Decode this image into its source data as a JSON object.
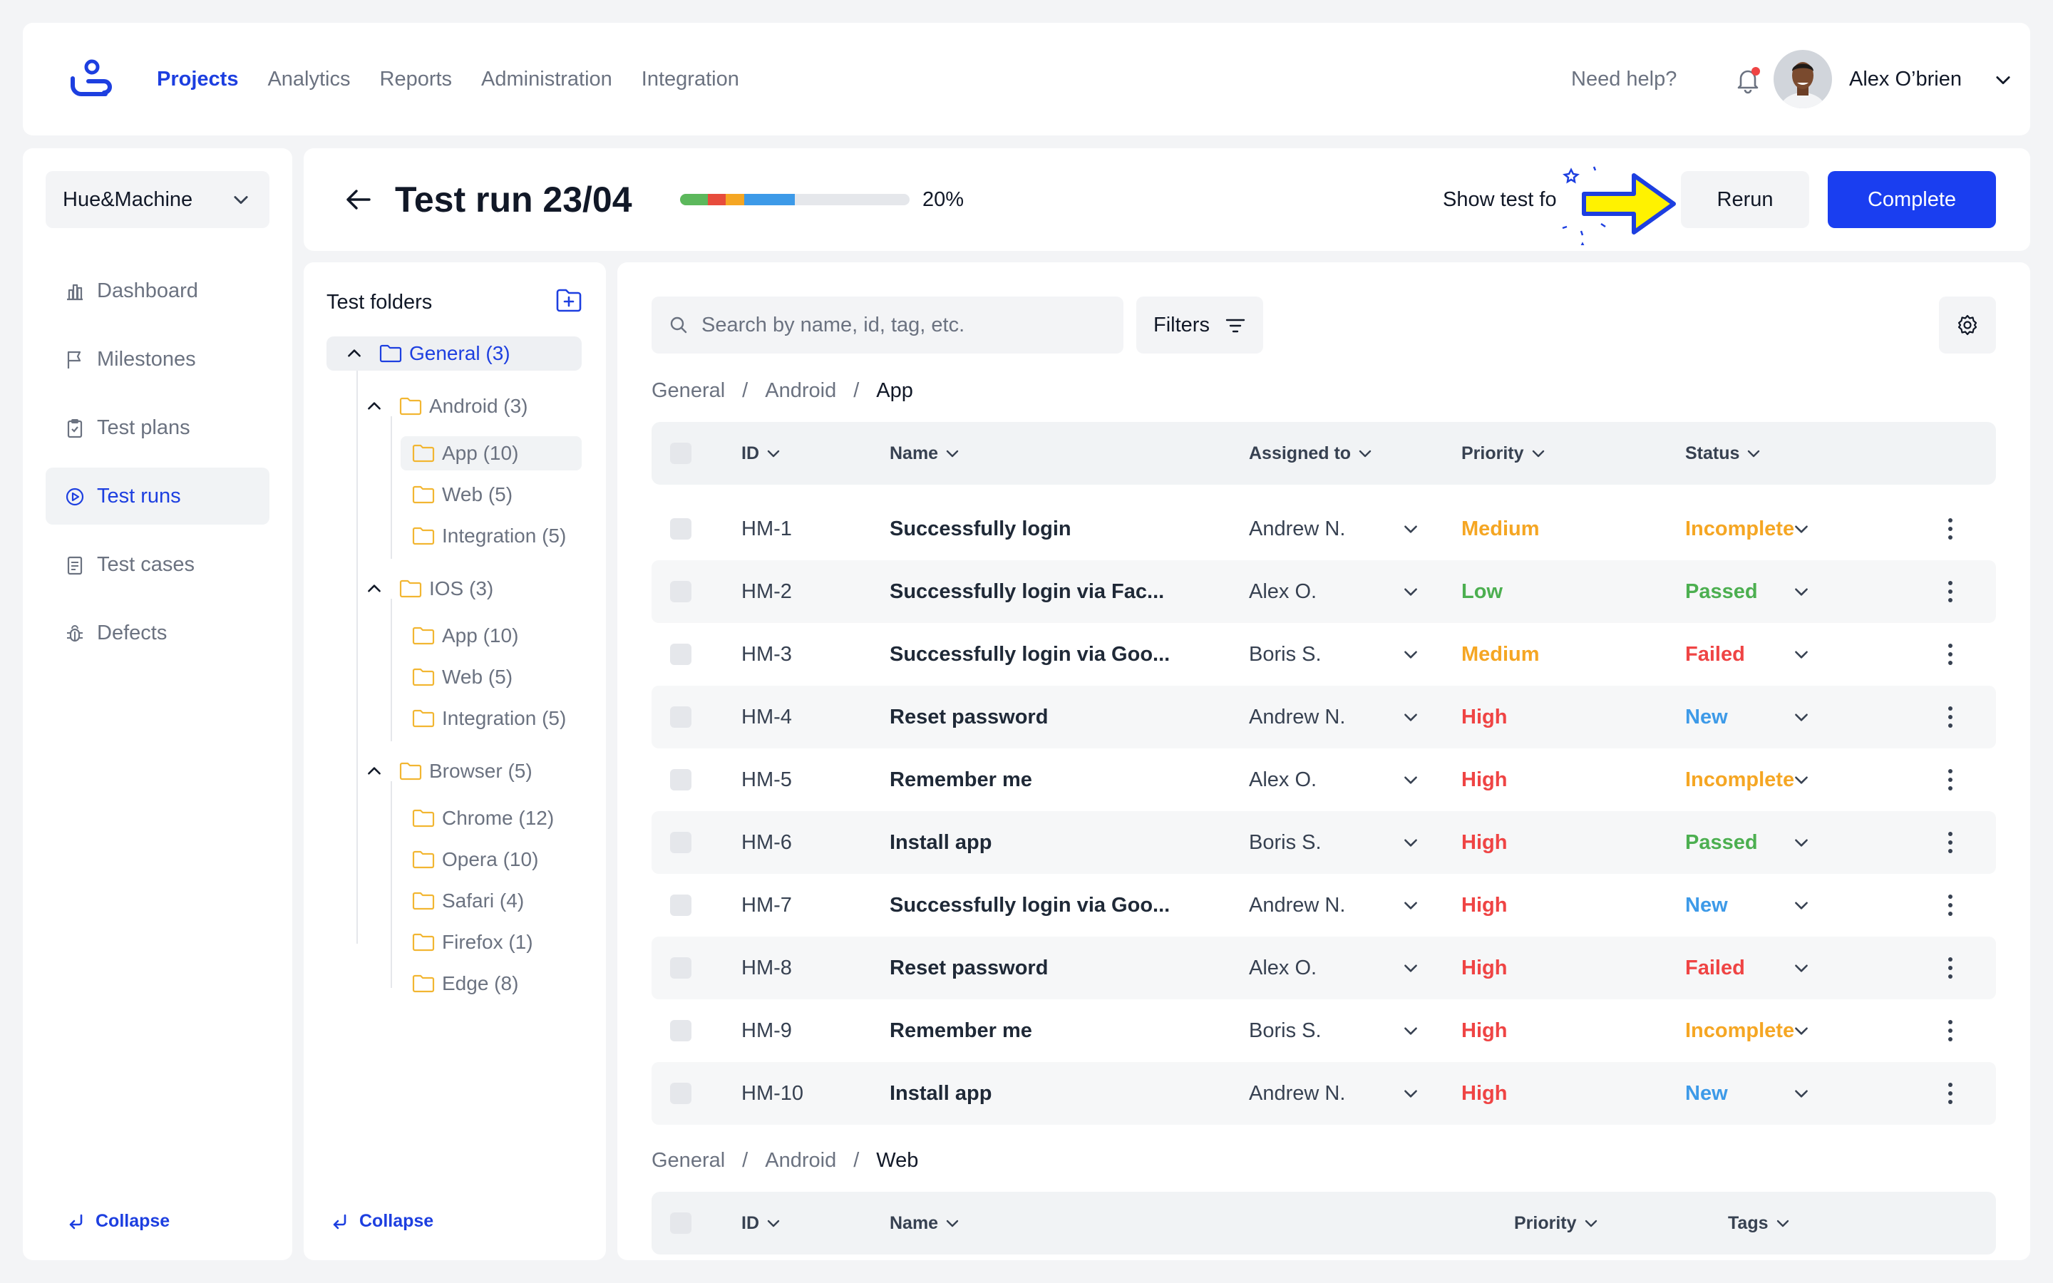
{
  "nav": {
    "links": [
      "Projects",
      "Analytics",
      "Reports",
      "Administration",
      "Integration"
    ],
    "help": "Need help?",
    "user": "Alex O’brien"
  },
  "sidebar": {
    "project": "Hue&Machine",
    "items": [
      "Dashboard",
      "Milestones",
      "Test plans",
      "Test runs",
      "Test cases",
      "Defects"
    ],
    "active": "Test runs",
    "collapse": "Collapse"
  },
  "header": {
    "title": "Test run 23/04",
    "progress_label": "20%",
    "progress_segments": [
      {
        "color": "#5cb85c",
        "fraction": 0.12
      },
      {
        "color": "#e74c3c",
        "fraction": 0.08
      },
      {
        "color": "#f5a623",
        "fraction": 0.08
      },
      {
        "color": "#3d9ae8",
        "fraction": 0.22
      }
    ],
    "show_test": "Show test fo",
    "rerun": "Rerun",
    "complete": "Complete"
  },
  "folders": {
    "title": "Test folders",
    "general": "General (3)",
    "android": "Android (3)",
    "android_children": [
      "App (10)",
      "Web (5)",
      "Integration (5)"
    ],
    "ios": "IOS (3)",
    "ios_children": [
      "App (10)",
      "Web (5)",
      "Integration (5)"
    ],
    "browser": "Browser (5)",
    "browser_children": [
      "Chrome (12)",
      "Opera (10)",
      "Safari (4)",
      "Firefox (1)",
      "Edge (8)"
    ],
    "collapse": "Collapse"
  },
  "main": {
    "search_placeholder": "Search by name, id, tag, etc.",
    "filters": "Filters",
    "breadcrumb1": [
      "General",
      "/",
      "Android",
      "/",
      "App"
    ],
    "breadcrumb2": [
      "General",
      "/",
      "Android",
      "/",
      "Web"
    ],
    "columns": [
      "ID",
      "Name",
      "Assigned to",
      "Priority",
      "Status"
    ],
    "columns2": [
      "ID",
      "Name",
      "Priority",
      "Tags"
    ],
    "rows": [
      {
        "id": "HM-1",
        "name": "Successfully login",
        "assigned": "Andrew N.",
        "priority": "Medium",
        "status": "Incomplete"
      },
      {
        "id": "HM-2",
        "name": "Successfully login via Fac...",
        "assigned": "Alex O.",
        "priority": "Low",
        "status": "Passed"
      },
      {
        "id": "HM-3",
        "name": "Successfully login via Goo...",
        "assigned": "Boris S.",
        "priority": "Medium",
        "status": "Failed"
      },
      {
        "id": "HM-4",
        "name": "Reset password",
        "assigned": "Andrew N.",
        "priority": "High",
        "status": "New"
      },
      {
        "id": "HM-5",
        "name": "Remember me",
        "assigned": "Alex O.",
        "priority": "High",
        "status": "Incomplete"
      },
      {
        "id": "HM-6",
        "name": "Install app",
        "assigned": "Boris S.",
        "priority": "High",
        "status": "Passed"
      },
      {
        "id": "HM-7",
        "name": "Successfully login via Goo...",
        "assigned": "Andrew N.",
        "priority": "High",
        "status": "New"
      },
      {
        "id": "HM-8",
        "name": "Reset password",
        "assigned": "Alex O.",
        "priority": "High",
        "status": "Failed"
      },
      {
        "id": "HM-9",
        "name": "Remember me",
        "assigned": "Boris S.",
        "priority": "High",
        "status": "Incomplete"
      },
      {
        "id": "HM-10",
        "name": "Install app",
        "assigned": "Andrew N.",
        "priority": "High",
        "status": "New"
      }
    ]
  },
  "colors": {
    "accent": "#1a3ef0",
    "Medium": "#f5a623",
    "Low": "#4caf50",
    "High": "#ef4444",
    "Incomplete": "#f5a623",
    "Passed": "#4caf50",
    "Failed": "#ef4444",
    "New": "#3d9ae8"
  }
}
